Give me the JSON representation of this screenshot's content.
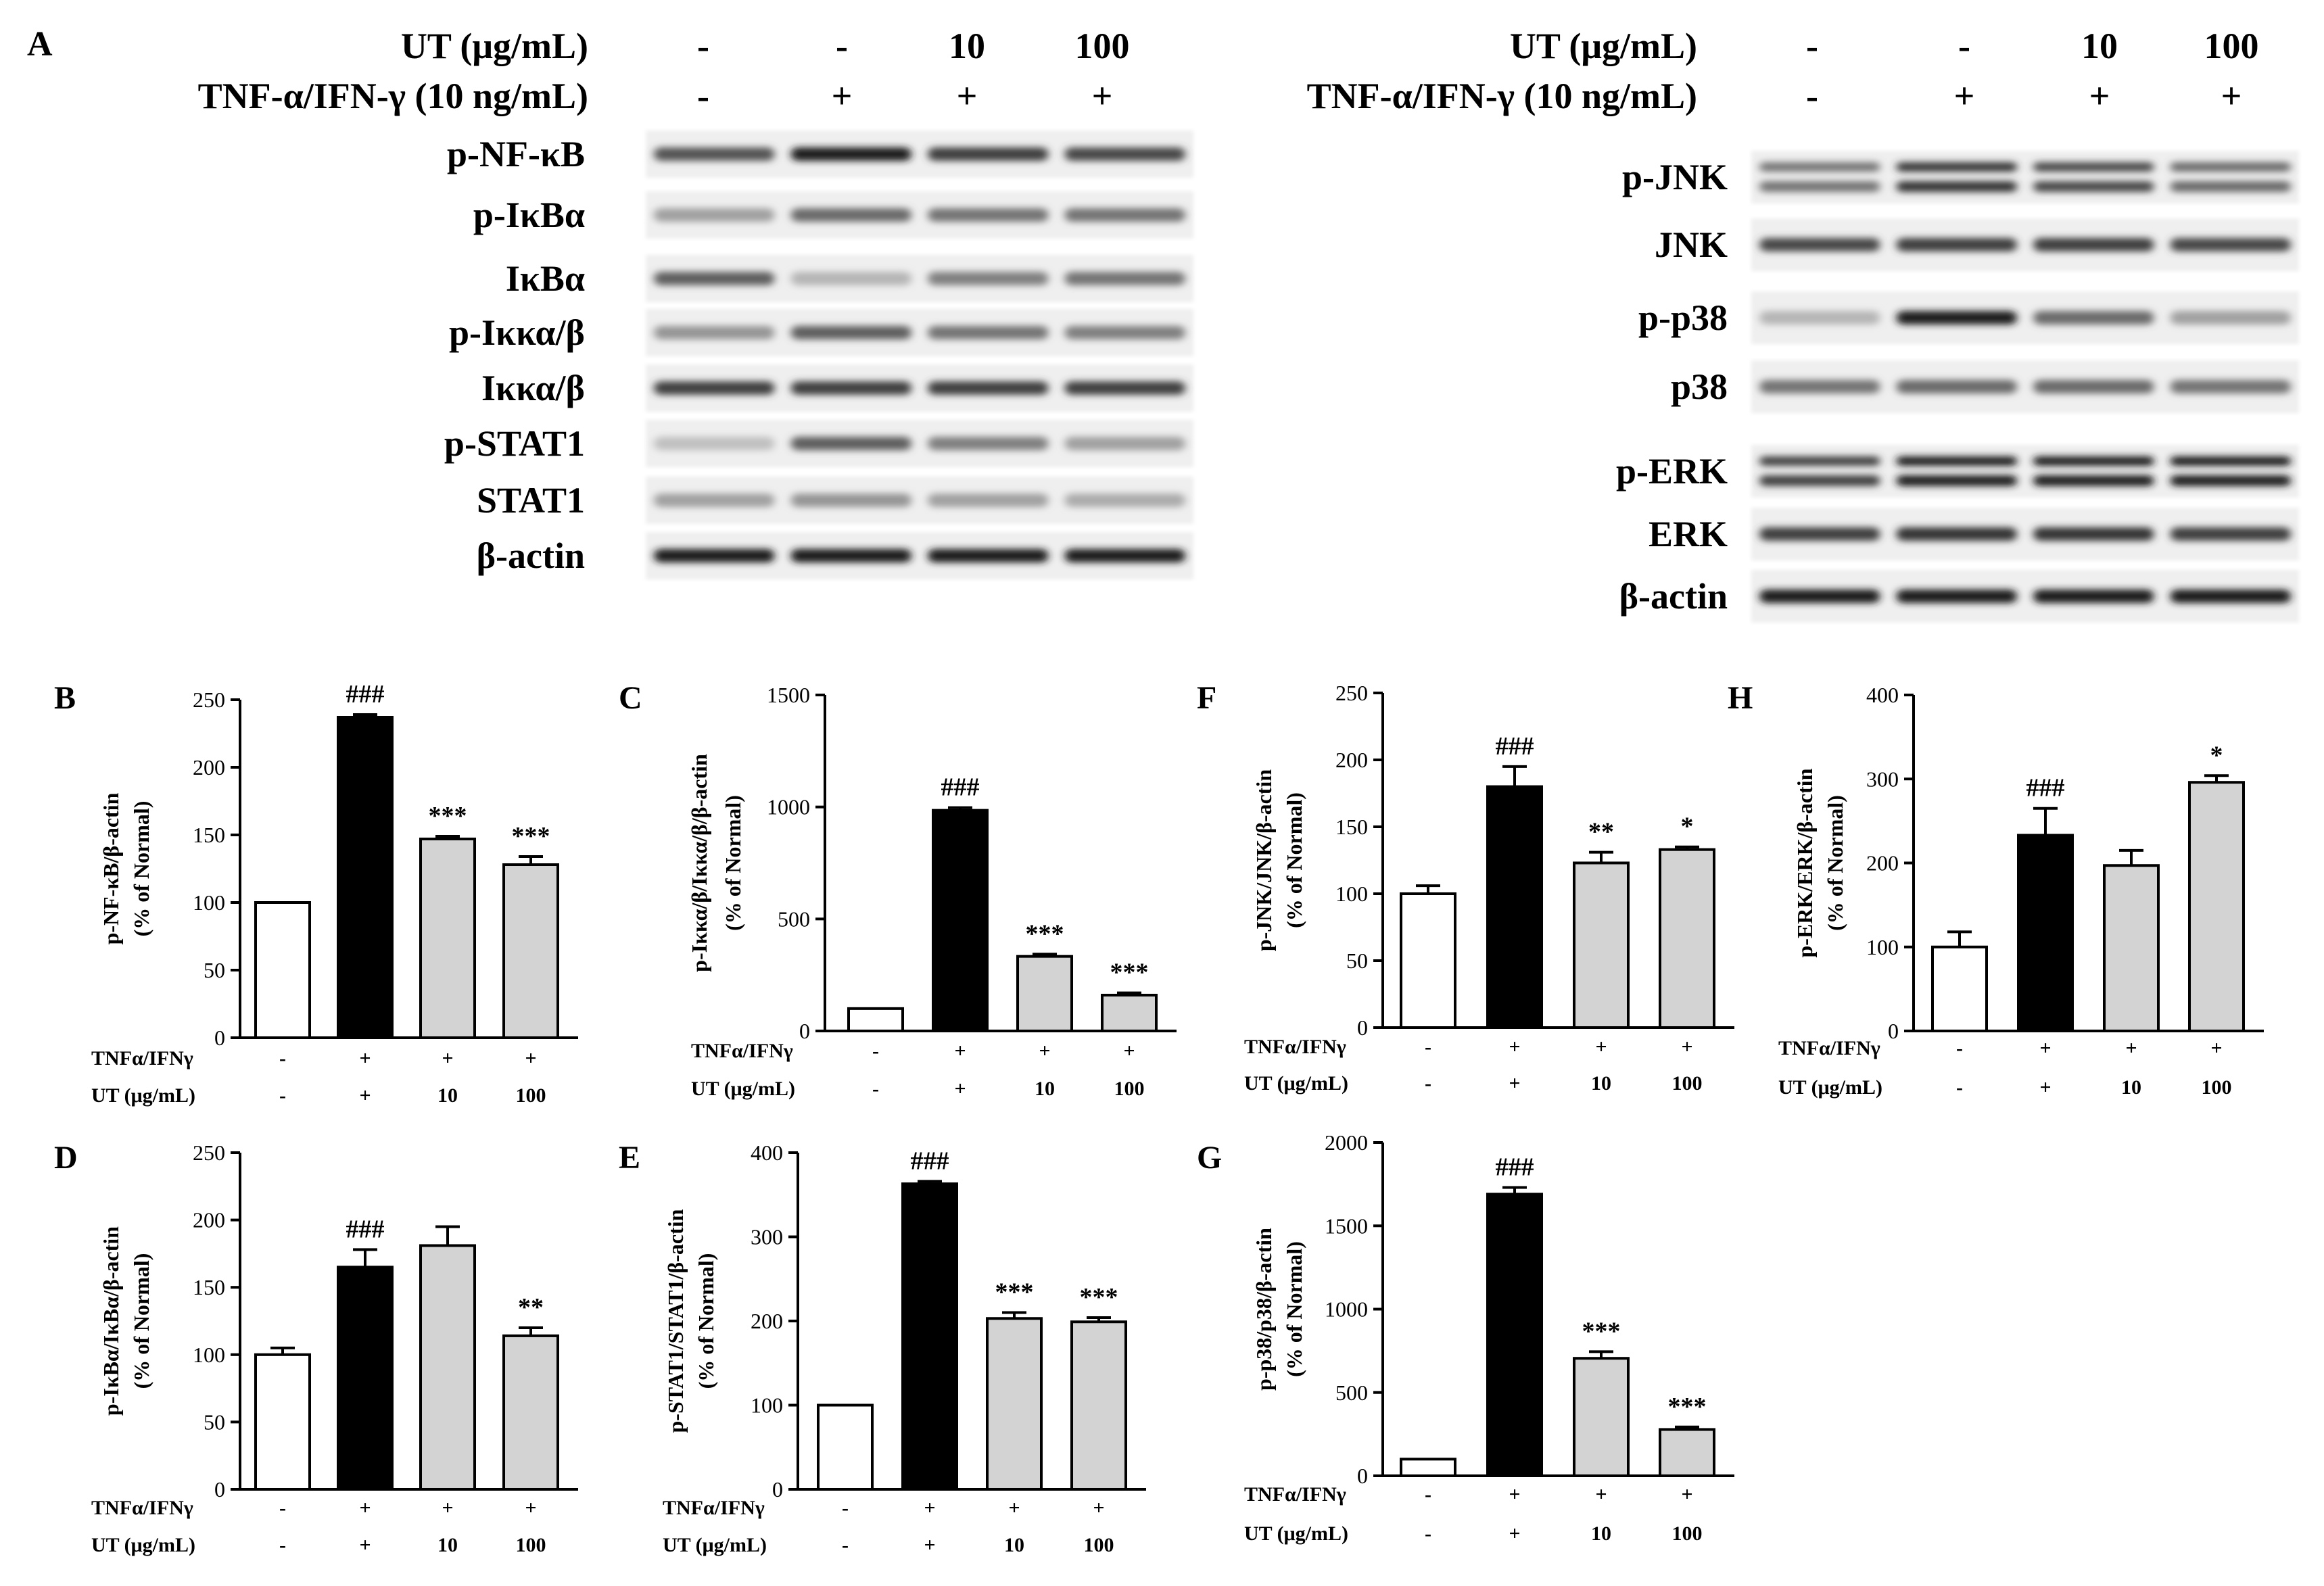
{
  "panel_a": {
    "letter": "A",
    "left": {
      "header": {
        "ut_label": "UT (μg/mL)",
        "tnf_label": "TNF-α/IFN-γ (10 ng/mL)",
        "ut_values": [
          "-",
          "-",
          "10",
          "100"
        ],
        "tnf_values": [
          "-",
          "+",
          "+",
          "+"
        ]
      },
      "blots": [
        {
          "label": "p-NF-κB",
          "intensity": [
            0.7,
            0.95,
            0.8,
            0.75
          ],
          "double": false
        },
        {
          "label": "p-IκBα",
          "intensity": [
            0.35,
            0.6,
            0.55,
            0.55
          ],
          "double": false
        },
        {
          "label": "IκBα",
          "intensity": [
            0.65,
            0.25,
            0.5,
            0.55
          ],
          "double": false
        },
        {
          "label": "p-Iκκα/β",
          "intensity": [
            0.4,
            0.65,
            0.55,
            0.5
          ],
          "double": false
        },
        {
          "label": "Iκκα/β",
          "intensity": [
            0.8,
            0.8,
            0.8,
            0.8
          ],
          "double": false
        },
        {
          "label": "p-STAT1",
          "intensity": [
            0.2,
            0.65,
            0.5,
            0.35
          ],
          "double": false
        },
        {
          "label": "STAT1",
          "intensity": [
            0.35,
            0.4,
            0.35,
            0.3
          ],
          "double": false
        },
        {
          "label": "β-actin",
          "intensity": [
            0.95,
            0.95,
            0.95,
            0.95
          ],
          "double": false
        }
      ]
    },
    "right": {
      "header": {
        "ut_label": "UT (μg/mL)",
        "tnf_label": "TNF-α/IFN-γ (10 ng/mL)",
        "ut_values": [
          "-",
          "-",
          "10",
          "100"
        ],
        "tnf_values": [
          "-",
          "+",
          "+",
          "+"
        ]
      },
      "blots": [
        {
          "label": "p-JNK",
          "intensity": [
            0.55,
            0.85,
            0.75,
            0.6
          ],
          "double": true
        },
        {
          "label": "JNK",
          "intensity": [
            0.75,
            0.8,
            0.8,
            0.75
          ],
          "double": false
        },
        {
          "label": "p-p38",
          "intensity": [
            0.25,
            0.95,
            0.6,
            0.35
          ],
          "double": false
        },
        {
          "label": "p38",
          "intensity": [
            0.55,
            0.6,
            0.6,
            0.55
          ],
          "double": false
        },
        {
          "label": "p-ERK",
          "intensity": [
            0.8,
            0.95,
            0.95,
            0.95
          ],
          "double": true
        },
        {
          "label": "ERK",
          "intensity": [
            0.8,
            0.85,
            0.85,
            0.8
          ],
          "double": false
        },
        {
          "label": "β-actin",
          "intensity": [
            0.95,
            0.95,
            0.95,
            0.95
          ],
          "double": false
        }
      ]
    }
  },
  "colors": {
    "normal_bar": "#ffffff",
    "tnf_bar": "#000000",
    "ut_bar": "#d3d3d3"
  },
  "chart_data": [
    {
      "id": "B",
      "type": "bar",
      "letter": "B",
      "ylabel_line1": "p-NF-κB/β-actin",
      "ylabel_line2": "(% of Normal)",
      "ylim": [
        0,
        250
      ],
      "yticks": [
        0,
        50,
        100,
        150,
        200,
        250
      ],
      "ytick_labels": [
        "0",
        "50",
        "100",
        "150",
        "200",
        "250"
      ],
      "values": [
        100,
        237,
        147,
        128
      ],
      "errors": [
        0,
        2,
        2,
        6
      ],
      "annotations": [
        "",
        "###",
        "***",
        "***"
      ],
      "row1_label": "TNFα/IFNγ",
      "row1_values": [
        "-",
        "+",
        "+",
        "+"
      ],
      "row2_label": "UT (μg/mL)",
      "row2_values": [
        "-",
        "+",
        "10",
        "100"
      ]
    },
    {
      "id": "C",
      "type": "bar",
      "letter": "C",
      "ylabel_line1": "p-Iκκα/β/Iκκα/β/β-actin",
      "ylabel_line2": "(% of Normal)",
      "ylim": [
        0,
        1500
      ],
      "yticks": [
        0,
        500,
        1000,
        1500
      ],
      "ytick_labels": [
        "0",
        "500",
        "1000",
        "1500"
      ],
      "values": [
        100,
        985,
        333,
        160
      ],
      "errors": [
        0,
        12,
        10,
        10
      ],
      "annotations": [
        "",
        "###",
        "***",
        "***"
      ],
      "row1_label": "TNFα/IFNγ",
      "row1_values": [
        "-",
        "+",
        "+",
        "+"
      ],
      "row2_label": "UT (μg/mL)",
      "row2_values": [
        "-",
        "+",
        "10",
        "100"
      ]
    },
    {
      "id": "F",
      "type": "bar",
      "letter": "F",
      "ylabel_line1": "p-JNK/JNK/β-actin",
      "ylabel_line2": "(% of Normal)",
      "ylim": [
        0,
        250
      ],
      "yticks": [
        0,
        50,
        100,
        150,
        200,
        250
      ],
      "ytick_labels": [
        "0",
        "50",
        "100",
        "150",
        "200",
        "250"
      ],
      "values": [
        100,
        180,
        123,
        133
      ],
      "errors": [
        6,
        15,
        8,
        2
      ],
      "annotations": [
        "",
        "###",
        "**",
        "*"
      ],
      "row1_label": "TNFα/IFNγ",
      "row1_values": [
        "-",
        "+",
        "+",
        "+"
      ],
      "row2_label": "UT (μg/mL)",
      "row2_values": [
        "-",
        "+",
        "10",
        "100"
      ]
    },
    {
      "id": "H",
      "type": "bar",
      "letter": "H",
      "ylabel_line1": "p-ERK/ERK/β-actin",
      "ylabel_line2": "(% of Normal)",
      "ylim": [
        0,
        400
      ],
      "yticks": [
        0,
        100,
        200,
        300,
        400
      ],
      "ytick_labels": [
        "0",
        "100",
        "200",
        "300",
        "400"
      ],
      "values": [
        100,
        233,
        197,
        296
      ],
      "errors": [
        18,
        32,
        18,
        8
      ],
      "annotations": [
        "",
        "###",
        "",
        "*"
      ],
      "row1_label": "TNFα/IFNγ",
      "row1_values": [
        "-",
        "+",
        "+",
        "+"
      ],
      "row2_label": "UT (μg/mL)",
      "row2_values": [
        "-",
        "+",
        "10",
        "100"
      ]
    },
    {
      "id": "D",
      "type": "bar",
      "letter": "D",
      "ylabel_line1": "p-IκBα/IκBα/β-actin",
      "ylabel_line2": "(% of Normal)",
      "ylim": [
        0,
        250
      ],
      "yticks": [
        0,
        50,
        100,
        150,
        200,
        250
      ],
      "ytick_labels": [
        "0",
        "50",
        "100",
        "150",
        "200",
        "250"
      ],
      "values": [
        100,
        165,
        181,
        114
      ],
      "errors": [
        5,
        13,
        14,
        6
      ],
      "annotations": [
        "",
        "###",
        "",
        "**"
      ],
      "row1_label": "TNFα/IFNγ",
      "row1_values": [
        "-",
        "+",
        "+",
        "+"
      ],
      "row2_label": "UT (μg/mL)",
      "row2_values": [
        "-",
        "+",
        "10",
        "100"
      ]
    },
    {
      "id": "E",
      "type": "bar",
      "letter": "E",
      "ylabel_line1": "p-STAT1/STAT1/β-actin",
      "ylabel_line2": "(% of Normal)",
      "ylim": [
        0,
        400
      ],
      "yticks": [
        0,
        100,
        200,
        300,
        400
      ],
      "ytick_labels": [
        "0",
        "100",
        "200",
        "300",
        "400"
      ],
      "values": [
        100,
        363,
        203,
        199
      ],
      "errors": [
        0,
        3,
        7,
        5
      ],
      "annotations": [
        "",
        "###",
        "***",
        "***"
      ],
      "row1_label": "TNFα/IFNγ",
      "row1_values": [
        "-",
        "+",
        "+",
        "+"
      ],
      "row2_label": "UT (μg/mL)",
      "row2_values": [
        "-",
        "+",
        "10",
        "100"
      ]
    },
    {
      "id": "G",
      "type": "bar",
      "letter": "G",
      "ylabel_line1": "p-p38/p38/β-actin",
      "ylabel_line2": "(% of Normal)",
      "ylim": [
        0,
        2000
      ],
      "yticks": [
        0,
        500,
        1000,
        1500,
        2000
      ],
      "ytick_labels": [
        "0",
        "500",
        "1000",
        "1500",
        "2000"
      ],
      "values": [
        100,
        1690,
        705,
        278
      ],
      "errors": [
        0,
        40,
        40,
        15
      ],
      "annotations": [
        "",
        "###",
        "***",
        "***"
      ],
      "row1_label": "TNFα/IFNγ",
      "row1_values": [
        "-",
        "+",
        "+",
        "+"
      ],
      "row2_label": "UT (μg/mL)",
      "row2_values": [
        "-",
        "+",
        "10",
        "100"
      ]
    }
  ]
}
